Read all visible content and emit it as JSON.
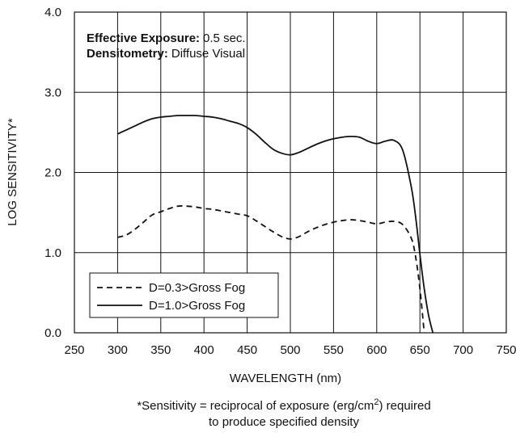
{
  "chart_data": {
    "type": "line",
    "xlabel": "WAVELENGTH (nm)",
    "ylabel": "LOG SENSITIVITY*",
    "xlim": [
      250,
      750
    ],
    "ylim": [
      0,
      4
    ],
    "xticks": [
      250,
      300,
      350,
      400,
      450,
      500,
      550,
      600,
      650,
      700,
      750
    ],
    "yticks": [
      0,
      1,
      2,
      3,
      4
    ],
    "ytick_labels": [
      "0.0",
      "1.0",
      "2.0",
      "3.0",
      "4.0"
    ],
    "xtick_labels": [
      "250",
      "300",
      "350",
      "400",
      "450",
      "500",
      "550",
      "600",
      "650",
      "700",
      "750"
    ],
    "grid": true,
    "legend_position": "bottom-left",
    "series": [
      {
        "name": "D=0.3>Gross Fog",
        "style": "dashed",
        "x": [
          300,
          310,
          320,
          330,
          340,
          350,
          360,
          370,
          380,
          390,
          400,
          410,
          420,
          430,
          440,
          450,
          460,
          470,
          480,
          490,
          500,
          510,
          520,
          530,
          540,
          550,
          560,
          570,
          580,
          590,
          600,
          610,
          620,
          630,
          640,
          645,
          650,
          655
        ],
        "y": [
          1.19,
          1.22,
          1.29,
          1.38,
          1.47,
          1.51,
          1.55,
          1.58,
          1.58,
          1.57,
          1.55,
          1.54,
          1.52,
          1.5,
          1.48,
          1.46,
          1.4,
          1.33,
          1.26,
          1.2,
          1.17,
          1.2,
          1.26,
          1.31,
          1.35,
          1.38,
          1.4,
          1.41,
          1.4,
          1.38,
          1.36,
          1.38,
          1.39,
          1.35,
          1.18,
          0.95,
          0.55,
          0.0
        ]
      },
      {
        "name": "D=1.0>Gross Fog",
        "style": "solid",
        "x": [
          300,
          310,
          320,
          330,
          340,
          350,
          360,
          370,
          380,
          390,
          400,
          410,
          420,
          430,
          440,
          450,
          460,
          470,
          480,
          490,
          500,
          510,
          520,
          530,
          540,
          550,
          560,
          570,
          580,
          590,
          600,
          610,
          620,
          630,
          640,
          645,
          650,
          655,
          660,
          665
        ],
        "y": [
          2.48,
          2.53,
          2.58,
          2.63,
          2.67,
          2.69,
          2.7,
          2.71,
          2.71,
          2.71,
          2.7,
          2.69,
          2.67,
          2.64,
          2.61,
          2.56,
          2.48,
          2.38,
          2.29,
          2.24,
          2.22,
          2.25,
          2.3,
          2.35,
          2.39,
          2.42,
          2.44,
          2.45,
          2.44,
          2.39,
          2.36,
          2.39,
          2.4,
          2.28,
          1.82,
          1.45,
          0.98,
          0.55,
          0.22,
          0.0
        ]
      }
    ],
    "annotations": {
      "exposure_label": "Effective Exposure:",
      "exposure_value": "0.5 sec.",
      "densitometry_label": "Densitometry:",
      "densitometry_value": "Diffuse Visual"
    },
    "footnote_line1_pre": "*Sensitivity = reciprocal of exposure (erg/cm",
    "footnote_sup": "2",
    "footnote_line1_post": ") required",
    "footnote_line2": "to produce specified density"
  }
}
